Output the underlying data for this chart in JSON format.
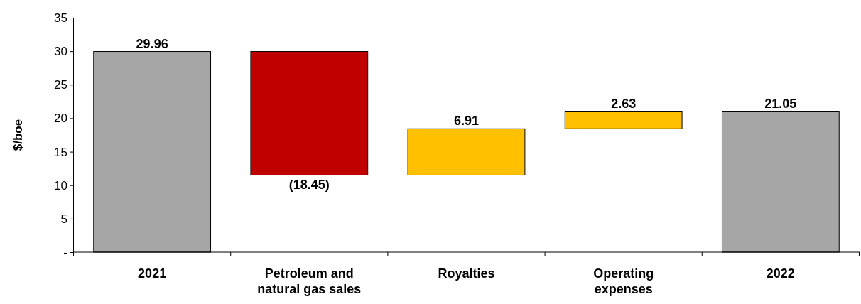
{
  "chart_data": {
    "type": "bar",
    "ylabel": "$/boe",
    "categories": [
      "2021",
      "Petroleum and natural gas sales",
      "Royalties",
      "Operating expenses",
      "2022"
    ],
    "values": [
      29.96,
      -18.45,
      6.91,
      2.63,
      21.05
    ],
    "base": [
      0,
      29.96,
      11.51,
      18.42,
      0
    ],
    "colors": [
      "#a6a6a6",
      "#c00000",
      "#ffc000",
      "#ffc000",
      "#a6a6a6"
    ],
    "value_labels": [
      "29.96",
      "(18.45)",
      "6.91",
      "2.63",
      "21.05"
    ],
    "ylim": [
      0,
      35
    ],
    "yticks": [
      {
        "value": 0,
        "label": "-"
      },
      5,
      10,
      15,
      20,
      25,
      30,
      35
    ],
    "grid": false
  }
}
